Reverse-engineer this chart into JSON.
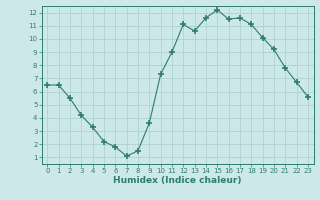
{
  "x": [
    0,
    1,
    2,
    3,
    4,
    5,
    6,
    7,
    8,
    9,
    10,
    11,
    12,
    13,
    14,
    15,
    16,
    17,
    18,
    19,
    20,
    21,
    22,
    23
  ],
  "y": [
    6.5,
    6.5,
    5.5,
    4.2,
    3.3,
    2.2,
    1.8,
    1.1,
    1.5,
    3.6,
    7.3,
    9.0,
    11.1,
    10.6,
    11.6,
    12.2,
    11.5,
    11.6,
    11.1,
    10.1,
    9.2,
    7.8,
    6.7,
    5.6
  ],
  "line_color": "#2e7d6e",
  "marker": "+",
  "markersize": 4,
  "markeredgewidth": 1.2,
  "bg_color": "#cce8e8",
  "grid_color": "#aacece",
  "xlabel": "Humidex (Indice chaleur)",
  "xlabel_fontsize": 6.5,
  "tick_fontsize": 5,
  "tick_color": "#2e7d6e",
  "ylim": [
    0.5,
    12.5
  ],
  "xlim": [
    -0.5,
    23.5
  ],
  "yticks": [
    1,
    2,
    3,
    4,
    5,
    6,
    7,
    8,
    9,
    10,
    11,
    12
  ],
  "xticks": [
    0,
    1,
    2,
    3,
    4,
    5,
    6,
    7,
    8,
    9,
    10,
    11,
    12,
    13,
    14,
    15,
    16,
    17,
    18,
    19,
    20,
    21,
    22,
    23
  ]
}
